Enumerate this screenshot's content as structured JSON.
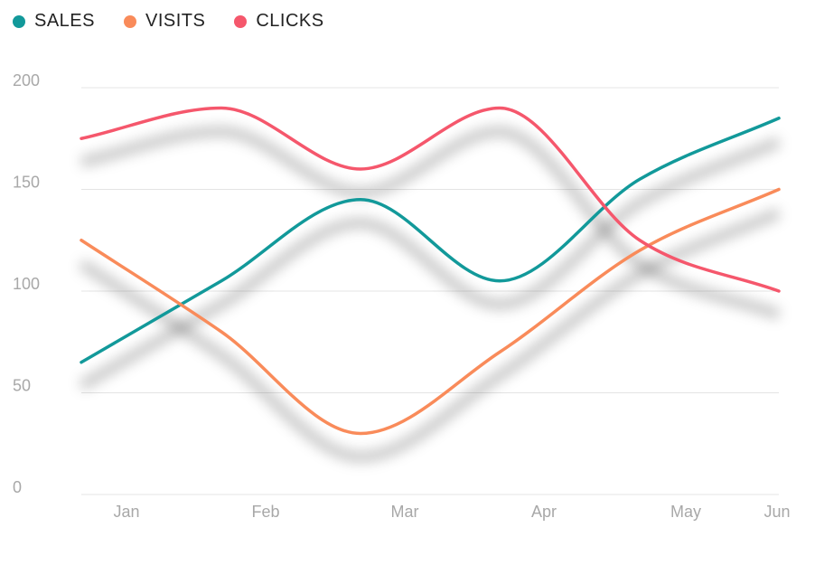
{
  "chart_data": {
    "type": "line",
    "smooth": true,
    "categories": [
      "Jan",
      "Feb",
      "Mar",
      "Apr",
      "May",
      "Jun"
    ],
    "series": [
      {
        "name": "SALES",
        "color": "#12999a",
        "values": [
          65,
          105,
          145,
          105,
          155,
          185
        ]
      },
      {
        "name": "VISITS",
        "color": "#f98b5a",
        "values": [
          125,
          80,
          30,
          70,
          120,
          150
        ]
      },
      {
        "name": "CLICKS",
        "color": "#f5576c",
        "values": [
          175,
          190,
          160,
          190,
          125,
          100
        ]
      }
    ],
    "ylim": [
      0,
      200
    ],
    "yticks": [
      "0",
      "50",
      "100",
      "150",
      "200"
    ],
    "grid": true,
    "legend_position": "top-left",
    "shadow": true
  }
}
